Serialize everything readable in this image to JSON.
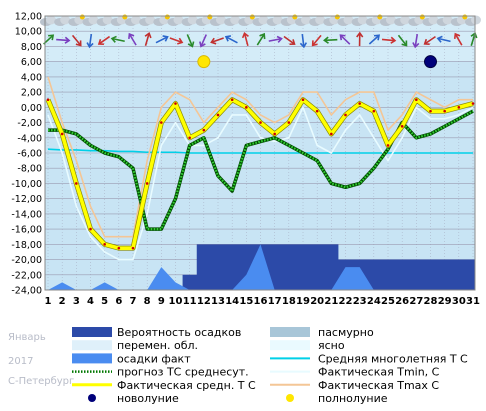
{
  "watermark": {
    "month": "Январь",
    "year": "2017",
    "city": "С-Петербург"
  },
  "chart_data": {
    "type": "line",
    "x": [
      1,
      2,
      3,
      4,
      5,
      6,
      7,
      8,
      9,
      10,
      11,
      12,
      13,
      14,
      15,
      16,
      17,
      18,
      19,
      20,
      21,
      22,
      23,
      24,
      25,
      26,
      27,
      28,
      29,
      30,
      31
    ],
    "ylim": [
      -24,
      12
    ],
    "yticks": [
      "-24,00",
      "-22,00",
      "-20,00",
      "-18,00",
      "-16,00",
      "-14,00",
      "-12,00",
      "-10,00",
      "-8,00",
      "-6,00",
      "-4,00",
      "-2,00",
      "0,00",
      "2,00",
      "4,00",
      "6,00",
      "8,00",
      "10,00",
      "12,00"
    ],
    "series": [
      {
        "name": "Фактическая средн. Т С",
        "color": "#ffff00",
        "values": [
          1.0,
          -3.5,
          -10,
          -16,
          -18,
          -18.5,
          -18.5,
          -10,
          -2,
          0.5,
          -4,
          -3,
          -1,
          1,
          0,
          -2,
          -3.5,
          -2,
          1,
          -0.5,
          -3.5,
          -1,
          0.5,
          -0.5,
          -5,
          -2.5,
          1,
          -0.5,
          -0.5,
          0,
          0.5
        ]
      },
      {
        "name": "Фактическая Tmin, C",
        "color": "#e8fbff",
        "values": [
          -1,
          -6,
          -13,
          -17,
          -19,
          -20,
          -20,
          -14,
          -5,
          -2,
          -5,
          -5,
          -4,
          -1,
          -1,
          -4,
          -4.5,
          -4,
          0,
          -5,
          -6,
          -3,
          -1,
          -4,
          -7,
          -4,
          0,
          -1.5,
          -1.5,
          -1,
          0
        ]
      },
      {
        "name": "Фактическая Tmax C",
        "color": "#f4c696",
        "values": [
          4,
          -2,
          -7,
          -13,
          -17,
          -17,
          -17,
          -7,
          0,
          2,
          1,
          -2,
          0,
          2,
          1,
          -1,
          -2,
          -1,
          2,
          2,
          -1,
          1,
          2,
          2,
          -3,
          -1,
          2,
          1,
          0,
          1,
          1
        ]
      },
      {
        "name": "прогноз ТС среднесут.",
        "color": "#007700",
        "values": [
          -3,
          -3,
          -3.5,
          -5,
          -6,
          -6.5,
          -8,
          -16,
          -16,
          -12,
          -5,
          -4,
          -9,
          -11,
          -5,
          -4.5,
          -4,
          -5,
          -6,
          -7,
          -10,
          -10.5,
          -10,
          -8,
          -5.5,
          -2,
          -4,
          -3.5,
          -2.5,
          -1.5,
          -0.5
        ]
      },
      {
        "name": "Средняя многолетняя Т С",
        "color": "#00d0e8",
        "values": [
          -5.5,
          -5.6,
          -5.6,
          -5.7,
          -5.7,
          -5.8,
          -5.8,
          -5.9,
          -5.9,
          -5.9,
          -6,
          -6,
          -6,
          -6,
          -6,
          -6,
          -6,
          -6,
          -6,
          -6,
          -6,
          -6,
          -6,
          -6,
          -6,
          -6,
          -6,
          -6,
          -6,
          -6,
          -6
        ]
      },
      {
        "name": "Вероятность осадков",
        "color": "#2c4aa8",
        "values": [
          -24,
          -24,
          -24,
          -24,
          -24,
          -24,
          -24,
          -24,
          -24,
          -24,
          -22,
          -18,
          -18,
          -18,
          -18,
          -18,
          -18,
          -18,
          -18,
          -18,
          -18,
          -20,
          -20,
          -20,
          -20,
          -20,
          -20,
          -20,
          -20,
          -20,
          -20
        ]
      },
      {
        "name": "осадки факт",
        "color": "#4a8cf0",
        "values": [
          -24,
          -23,
          -24,
          -24,
          -23,
          -24,
          -24,
          -24,
          -21,
          -23,
          -24,
          -24,
          -24,
          -24,
          -22,
          -18,
          -24,
          -24,
          -24,
          -24,
          -24,
          -21,
          -21,
          -24,
          -24,
          -24,
          -24,
          -24,
          -24,
          -24,
          -24
        ]
      }
    ],
    "moon": [
      {
        "label": "новолуние",
        "day": 28,
        "y": 6
      },
      {
        "label": "полнолуние",
        "day": 12,
        "y": 6
      }
    ],
    "legend": {
      "left": [
        "Вероятность осадков",
        "перемен. обл.",
        "осадки факт",
        "прогноз ТС среднесут.",
        "Фактическая средн. Т С",
        "новолуние"
      ],
      "right": [
        "пасмурно",
        "ясно",
        "Средняя многолетняя Т С",
        "Фактическая Tmin, C",
        "Фактическая Tmax C",
        "полнолуние"
      ]
    },
    "colors": {
      "background": "#c8e4f4",
      "grid": "#9a9ab0",
      "overcast": "#a8c6d8",
      "clear": "#eafaff",
      "partly_cloudy": "#dff0fa"
    }
  }
}
